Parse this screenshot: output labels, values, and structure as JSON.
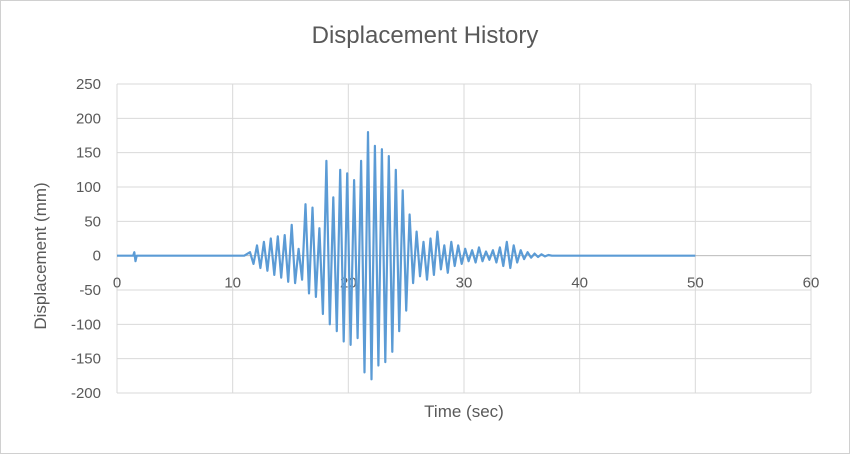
{
  "chart_data": {
    "type": "line",
    "title": "Displacement History",
    "xlabel": "Time (sec)",
    "ylabel": "Displacement (mm)",
    "xlim": [
      0,
      60
    ],
    "ylim": [
      -200,
      250
    ],
    "xticks": [
      0,
      10,
      20,
      30,
      40,
      50,
      60
    ],
    "yticks": [
      250,
      200,
      150,
      100,
      50,
      0,
      -50,
      -100,
      -150,
      -200
    ],
    "grid": true,
    "legend": "none",
    "series": [
      {
        "color": "#5b9bd5",
        "x": [
          0,
          1.4,
          1.5,
          1.6,
          1.7,
          3,
          5,
          8,
          10,
          11,
          11.5,
          11.8,
          12.1,
          12.4,
          12.7,
          13.0,
          13.3,
          13.6,
          13.9,
          14.2,
          14.5,
          14.8,
          15.1,
          15.4,
          15.7,
          16.0,
          16.3,
          16.6,
          16.9,
          17.2,
          17.5,
          17.8,
          18.1,
          18.4,
          18.7,
          19.0,
          19.3,
          19.6,
          19.9,
          20.2,
          20.5,
          20.8,
          21.1,
          21.4,
          21.7,
          22.0,
          22.3,
          22.6,
          22.9,
          23.2,
          23.5,
          23.8,
          24.1,
          24.4,
          24.7,
          25.0,
          25.3,
          25.6,
          25.9,
          26.2,
          26.5,
          26.8,
          27.1,
          27.4,
          27.7,
          28.0,
          28.3,
          28.6,
          28.9,
          29.2,
          29.5,
          29.8,
          30.1,
          30.4,
          30.7,
          31.0,
          31.3,
          31.6,
          31.9,
          32.2,
          32.5,
          32.8,
          33.1,
          33.4,
          33.7,
          34.0,
          34.3,
          34.6,
          34.9,
          35.2,
          35.5,
          35.8,
          36.1,
          36.4,
          36.7,
          37.0,
          37.3,
          37.6,
          37.9,
          38.2,
          38.5,
          38.8,
          39.1,
          39.4,
          39.7,
          40.0,
          40.3,
          40.6,
          41.0,
          42,
          44,
          46,
          47.2,
          47.3,
          47.4,
          47.5,
          48,
          50
        ],
        "y": [
          0,
          0,
          5,
          -8,
          0,
          0,
          0,
          0,
          0,
          0,
          5,
          -12,
          15,
          -18,
          20,
          -22,
          25,
          -28,
          28,
          -32,
          30,
          -38,
          45,
          -40,
          10,
          -35,
          75,
          -55,
          70,
          -60,
          40,
          -85,
          138,
          -100,
          85,
          -110,
          125,
          -125,
          120,
          -130,
          110,
          -120,
          138,
          -170,
          180,
          -180,
          160,
          -160,
          155,
          -155,
          145,
          -140,
          125,
          -110,
          95,
          -80,
          60,
          -40,
          35,
          -30,
          20,
          -35,
          25,
          -28,
          35,
          -20,
          15,
          -25,
          20,
          -15,
          15,
          -12,
          10,
          -8,
          8,
          -10,
          12,
          -8,
          6,
          -6,
          8,
          -10,
          12,
          -15,
          20,
          -18,
          15,
          -10,
          8,
          -5,
          5,
          -3,
          3,
          -2,
          2,
          -1,
          1,
          0,
          0,
          0,
          0,
          0,
          0,
          0,
          0,
          0,
          0,
          0,
          0,
          0,
          0,
          0,
          0,
          0,
          0,
          0,
          0,
          0
        ]
      }
    ]
  }
}
